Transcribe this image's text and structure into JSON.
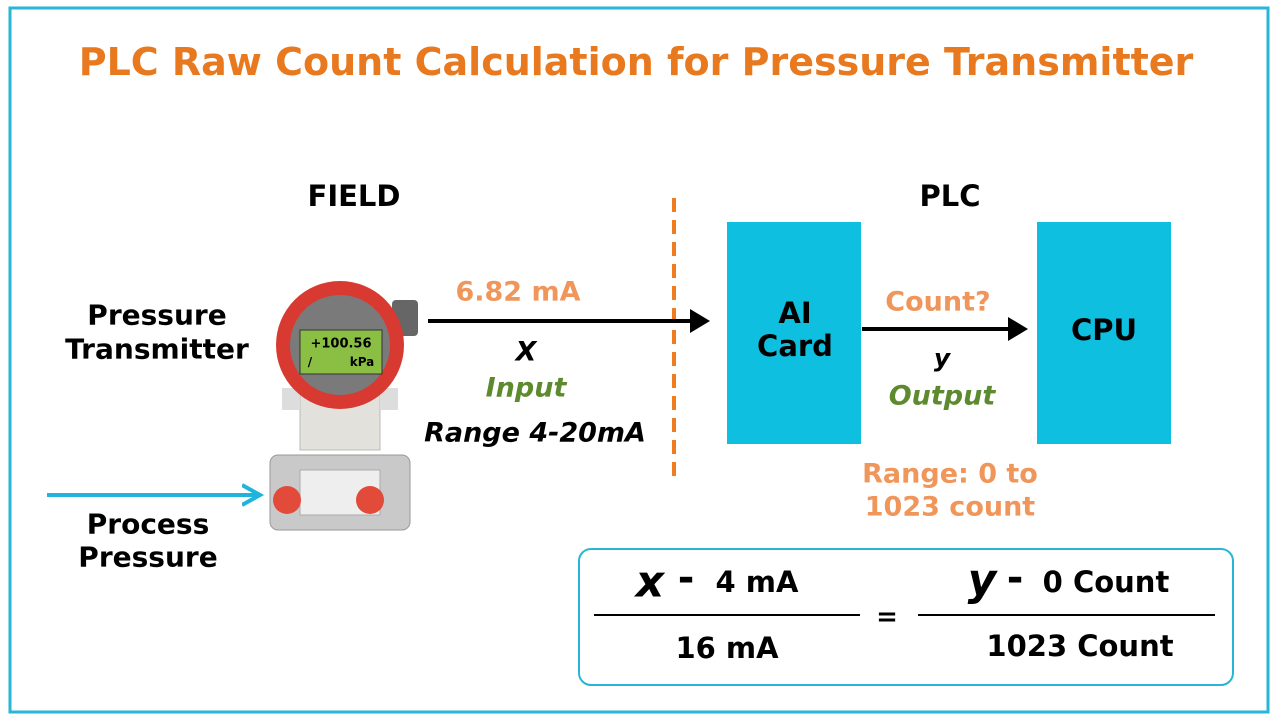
{
  "title": "PLC Raw Count Calculation for Pressure Transmitter",
  "sections": {
    "field": "FIELD",
    "plc": "PLC"
  },
  "transmitter": {
    "label_lines": [
      "Pressure",
      "Transmitter"
    ],
    "display": {
      "reading": "+100.56",
      "slash": "/",
      "unit": "kPa"
    }
  },
  "process": {
    "label_lines": [
      "Process",
      "Pressure"
    ]
  },
  "input": {
    "current": "6.82 mA",
    "variable": "X",
    "role": "Input",
    "range": "Range 4-20mA"
  },
  "nodes": [
    {
      "label_lines": [
        "AI",
        "Card"
      ]
    },
    {
      "label_lines": [
        "CPU"
      ]
    }
  ],
  "output": {
    "question": "Count?",
    "variable": "y",
    "role": "Output",
    "range_lines": [
      "Range: 0 to",
      "1023 count"
    ]
  },
  "formula": {
    "left": {
      "variable": "x",
      "minus": "-",
      "offset": "4 mA",
      "denominator": "16 mA"
    },
    "equals": "=",
    "right": {
      "variable": "y",
      "minus": "-",
      "offset": "0 Count",
      "denominator": "1023 Count"
    }
  }
}
